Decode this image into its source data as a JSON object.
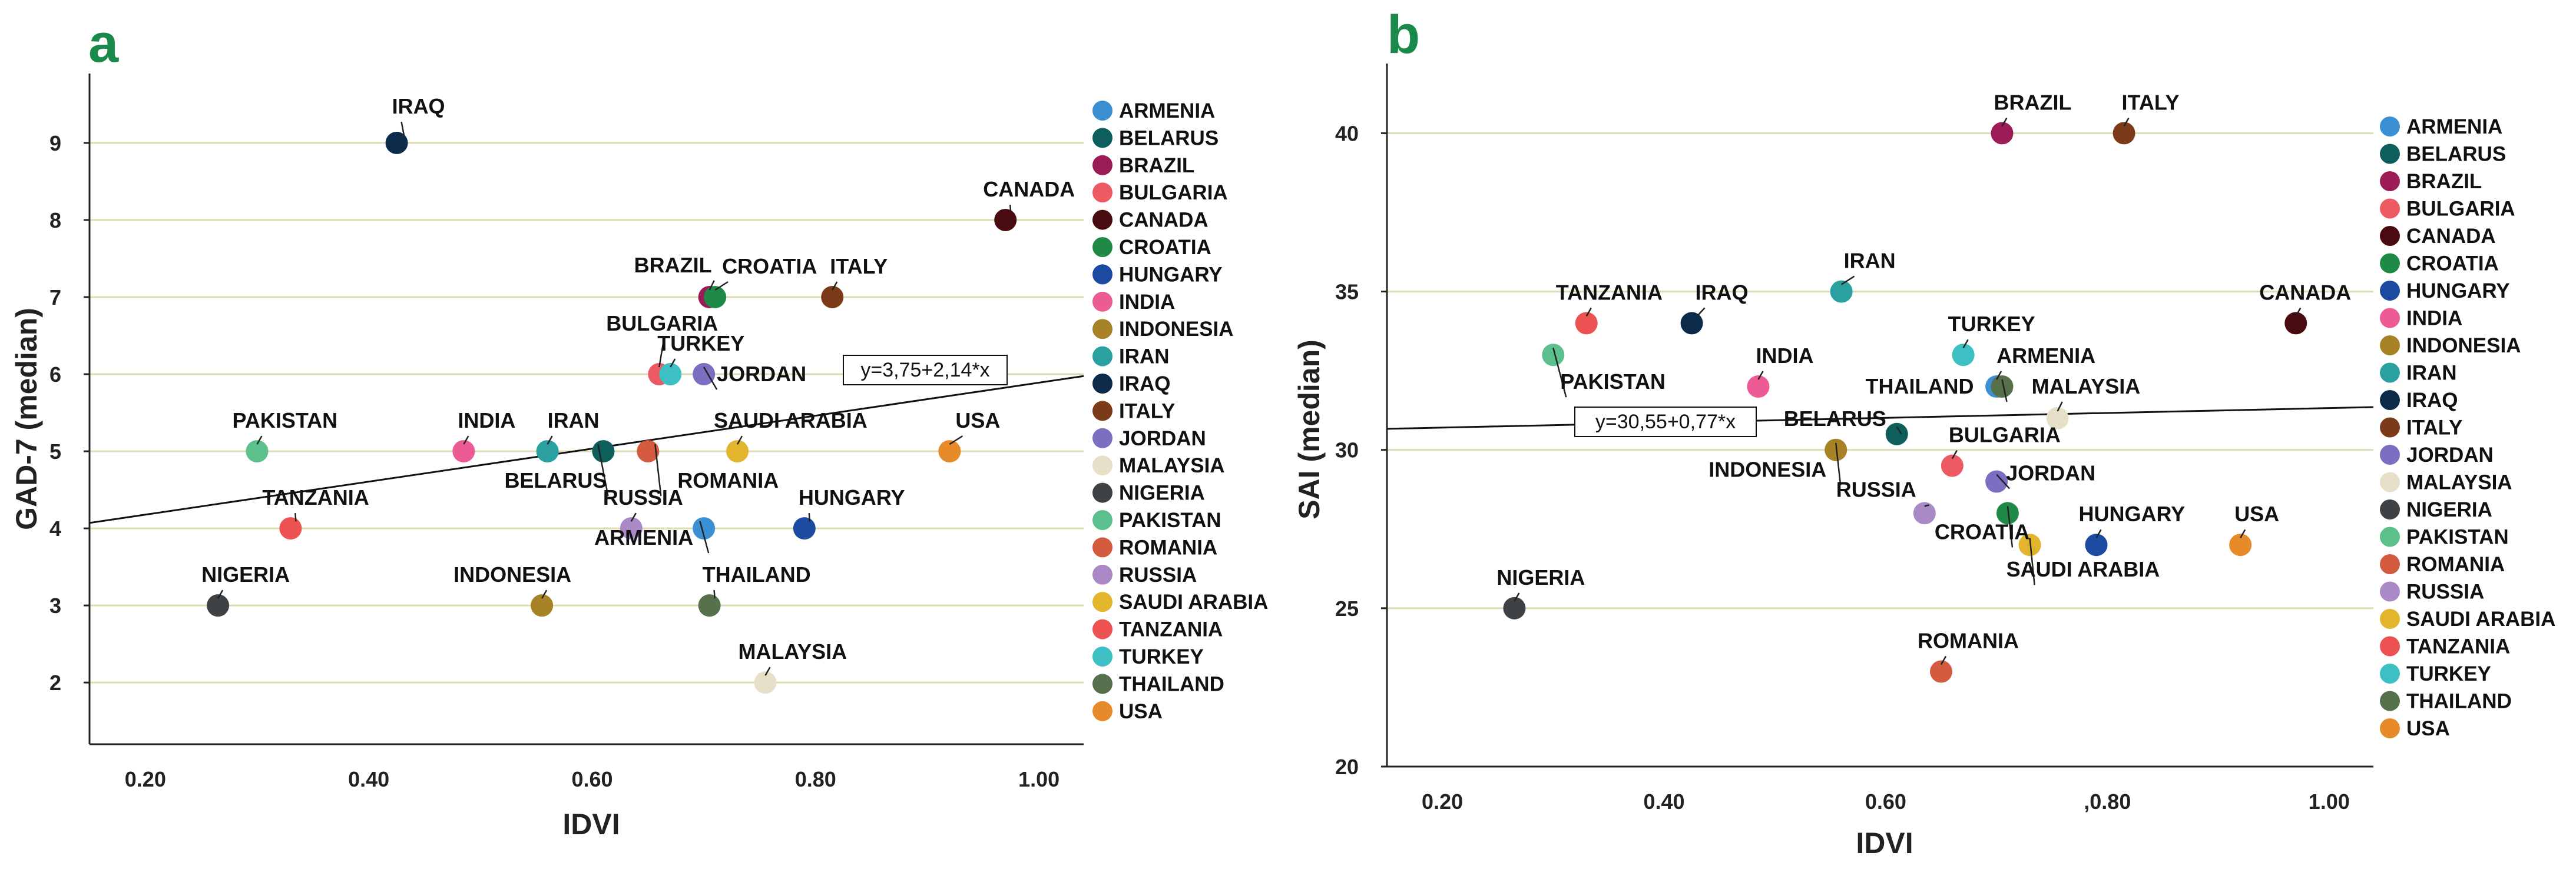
{
  "colors": {
    "ARMENIA": "#3b8fd3",
    "BELARUS": "#0e5e5c",
    "BRAZIL": "#9c1c58",
    "BULGARIA": "#ee5a64",
    "CANADA": "#4a0b10",
    "CROATIA": "#1f8a48",
    "HUNGARY": "#1c4aa0",
    "INDIA": "#ec5b93",
    "INDONESIA": "#a88226",
    "IRAN": "#2aa0a0",
    "IRAQ": "#0c2a4a",
    "ITALY": "#7b3a18",
    "JORDAN": "#7a6fc0",
    "MALAYSIA": "#e6e0c8",
    "NIGERIA": "#3e4244",
    "PAKISTAN": "#5cc08c",
    "ROMANIA": "#d45a40",
    "RUSSIA": "#a989c6",
    "SAUDI ARABIA": "#e2b52c",
    "TANZANIA": "#ec5252",
    "TURKEY": "#3cc0c4",
    "THAILAND": "#55704a",
    "USA": "#e68a2a"
  },
  "chart_data": [
    {
      "panel": "a",
      "type": "scatter",
      "xlabel": "IDVI",
      "ylabel": "GAD-7 (median)",
      "xlim": [
        0.15,
        1.04
      ],
      "ylim": [
        1.2,
        9.9
      ],
      "xticks": [
        0.2,
        0.4,
        0.6,
        0.8,
        1.0
      ],
      "xtick_labels": [
        "0.20",
        "0.40",
        "0.60",
        "0.80",
        "1.00"
      ],
      "yticks": [
        2,
        3,
        4,
        5,
        6,
        7,
        8,
        9
      ],
      "ytick_labels": [
        "2",
        "3",
        "4",
        "5",
        "6",
        "7",
        "8",
        "9"
      ],
      "gridlines": "horizontal",
      "regression": {
        "intercept": 3.75,
        "slope": 2.14,
        "label": "y=3,75+2,14*x"
      },
      "legend": [
        "ARMENIA",
        "BELARUS",
        "BRAZIL",
        "BULGARIA",
        "CANADA",
        "CROATIA",
        "HUNGARY",
        "INDIA",
        "INDONESIA",
        "IRAN",
        "IRAQ",
        "ITALY",
        "JORDAN",
        "MALAYSIA",
        "NIGERIA",
        "PAKISTAN",
        "ROMANIA",
        "RUSSIA",
        "SAUDI ARABIA",
        "TANZANIA",
        "TURKEY",
        "THAILAND",
        "USA"
      ],
      "legend_display": [
        "ARMENIA",
        "BELARUS",
        "BRAZIL",
        "BULGARIA",
        "CANADA",
        "CROATIA",
        "HUNGARY",
        "INDIA",
        "INDONESIA",
        "IRAN",
        "IRAQ",
        "ITALY",
        "JORDAN",
        "MALAYSIA",
        "NIGERIA",
        "PAKISTAN",
        "ROMANIA",
        "RUSSIA",
        "SAUDI ARABIA",
        "TANZANIA",
        "TURKEY",
        "THAILAND",
        "USA"
      ],
      "points": [
        {
          "country": "IRAQ",
          "label": "IRAQ",
          "x": 0.425,
          "y": 9
        },
        {
          "country": "CANADA",
          "label": "CANADA",
          "x": 0.97,
          "y": 8
        },
        {
          "country": "BRAZIL",
          "label": "BRAZIL",
          "x": 0.705,
          "y": 7
        },
        {
          "country": "CROATIA",
          "label": "CROATIA",
          "x": 0.71,
          "y": 7
        },
        {
          "country": "ITALY",
          "label": "ITALY",
          "x": 0.815,
          "y": 7
        },
        {
          "country": "BULGARIA",
          "label": "BULGARIA",
          "x": 0.66,
          "y": 6
        },
        {
          "country": "TURKEY",
          "label": "TURKEY",
          "x": 0.67,
          "y": 6
        },
        {
          "country": "JORDAN",
          "label": "JORDAN",
          "x": 0.7,
          "y": 6
        },
        {
          "country": "PAKISTAN",
          "label": "PAKISTAN",
          "x": 0.3,
          "y": 5
        },
        {
          "country": "INDIA",
          "label": "INDIA",
          "x": 0.485,
          "y": 5
        },
        {
          "country": "IRAN",
          "label": "IRAN",
          "x": 0.56,
          "y": 5
        },
        {
          "country": "BELARUS",
          "label": "BELARUS",
          "x": 0.61,
          "y": 5
        },
        {
          "country": "ROMANIA",
          "label": "ROMANIA",
          "x": 0.65,
          "y": 5
        },
        {
          "country": "SAUDI ARABIA",
          "label": "SAUDI ARABIA",
          "x": 0.73,
          "y": 5
        },
        {
          "country": "USA",
          "label": "USA",
          "x": 0.92,
          "y": 5
        },
        {
          "country": "TANZANIA",
          "label": "TANZANIA",
          "x": 0.33,
          "y": 4
        },
        {
          "country": "RUSSIA",
          "label": "RUSSIA",
          "x": 0.635,
          "y": 4
        },
        {
          "country": "ARMENIA",
          "label": "ARMENIA",
          "x": 0.7,
          "y": 4
        },
        {
          "country": "HUNGARY",
          "label": "HUNGARY",
          "x": 0.79,
          "y": 4
        },
        {
          "country": "NIGERIA",
          "label": "NIGERIA",
          "x": 0.265,
          "y": 3
        },
        {
          "country": "INDONESIA",
          "label": "INDONESIA",
          "x": 0.555,
          "y": 3
        },
        {
          "country": "THAILAND",
          "label": "THAILAND",
          "x": 0.705,
          "y": 3
        },
        {
          "country": "MALAYSIA",
          "label": "MALAYSIA",
          "x": 0.755,
          "y": 2
        }
      ]
    },
    {
      "panel": "b",
      "type": "scatter",
      "xlabel": "IDVI",
      "ylabel": "SAI (median)",
      "xlim": [
        0.15,
        1.04
      ],
      "ylim": [
        20,
        42.2
      ],
      "xticks": [
        0.2,
        0.4,
        0.6,
        0.8,
        1.0
      ],
      "xtick_labels": [
        "0.20",
        "0.40",
        "0.60",
        ",0.80",
        "1.00"
      ],
      "yticks": [
        20,
        25,
        30,
        35,
        40
      ],
      "ytick_labels": [
        "20",
        "25",
        "30",
        "35",
        "40"
      ],
      "gridlines": "horizontal",
      "regression": {
        "intercept": 30.55,
        "slope": 0.77,
        "label": "y=30,55+0,77*x"
      },
      "legend": [
        "ARMENIA",
        "BELARUS",
        "BRAZIL",
        "BULGARIA",
        "CANADA",
        "CROATIA",
        "HUNGARY",
        "INDIA",
        "INDONESIA",
        "IRAN",
        "IRAQ",
        "ITALY",
        "JORDAN",
        "MALAYSIA",
        "NIGERIA",
        "PAKISTAN",
        "ROMANIA",
        "RUSSIA",
        "SAUDI ARABIA",
        "TANZANIA",
        "TURKEY",
        "THAILAND",
        "USA"
      ],
      "legend_display": [
        "ARMENIA",
        "BELARUS",
        "BRAZIL",
        "BULGARIA",
        "CANADA",
        "CROATIA",
        "HUNGARY",
        "INDIA",
        "INDONESIA",
        "IRAN",
        "IRAQ",
        "ITALY",
        "JORDAN",
        "MALAYSIA",
        "NIGERIA",
        "PAKISTAN",
        "ROMANIA",
        "RUSSIA",
        "SAUDI ARABIA",
        "TANZANIA",
        "TURKEY",
        "THAILAND",
        "USA"
      ],
      "points": [
        {
          "country": "BRAZIL",
          "label": "BRAZIL",
          "x": 0.705,
          "y": 40
        },
        {
          "country": "ITALY",
          "label": "ITALY",
          "x": 0.815,
          "y": 40
        },
        {
          "country": "IRAN",
          "label": "IRAN",
          "x": 0.56,
          "y": 35
        },
        {
          "country": "TANZANIA",
          "label": "TANZANIA",
          "x": 0.33,
          "y": 34
        },
        {
          "country": "IRAQ",
          "label": "IRAQ",
          "x": 0.425,
          "y": 34
        },
        {
          "country": "CANADA",
          "label": "CANADA",
          "x": 0.97,
          "y": 34
        },
        {
          "country": "PAKISTAN",
          "label": "PAKISTAN",
          "x": 0.3,
          "y": 33
        },
        {
          "country": "TURKEY",
          "label": "TURKEY",
          "x": 0.67,
          "y": 33
        },
        {
          "country": "INDIA",
          "label": "INDIA",
          "x": 0.485,
          "y": 32
        },
        {
          "country": "ARMENIA",
          "label": "ARMENIA",
          "x": 0.7,
          "y": 32
        },
        {
          "country": "THAILAND",
          "label": "THAILAND",
          "x": 0.705,
          "y": 32
        },
        {
          "country": "MALAYSIA",
          "label": "MALAYSIA",
          "x": 0.755,
          "y": 31
        },
        {
          "country": "BELARUS",
          "label": "BELARUS",
          "x": 0.61,
          "y": 30.5
        },
        {
          "country": "INDONESIA",
          "label": "INDONESIA",
          "x": 0.555,
          "y": 30
        },
        {
          "country": "BULGARIA",
          "label": "BULGARIA",
          "x": 0.66,
          "y": 29.5
        },
        {
          "country": "JORDAN",
          "label": "JORDAN",
          "x": 0.7,
          "y": 29
        },
        {
          "country": "RUSSIA",
          "label": "RUSSIA",
          "x": 0.635,
          "y": 28
        },
        {
          "country": "CROATIA",
          "label": "CROATIA",
          "x": 0.71,
          "y": 28
        },
        {
          "country": "SAUDI ARABIA",
          "label": "SAUDI ARABIA",
          "x": 0.73,
          "y": 27
        },
        {
          "country": "HUNGARY",
          "label": "HUNGARY",
          "x": 0.79,
          "y": 27
        },
        {
          "country": "USA",
          "label": "USA",
          "x": 0.92,
          "y": 27
        },
        {
          "country": "NIGERIA",
          "label": "NIGERIA",
          "x": 0.265,
          "y": 25
        },
        {
          "country": "ROMANIA",
          "label": "ROMANIA",
          "x": 0.65,
          "y": 23
        }
      ]
    }
  ]
}
